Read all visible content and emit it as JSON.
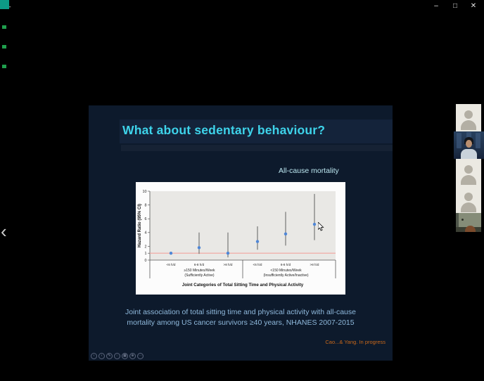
{
  "colors": {
    "slide_bg": "#0d1a2c",
    "slide_band": "#14233a",
    "title_cyan": "#3ed3ea",
    "heading_cyan": "#bce7f0",
    "caption_blue": "#8fb9dc",
    "citation_orange": "#c9681a",
    "panel_white": "#fcfcfc",
    "plot_gray": "#e9e8e5",
    "point_blue": "#4f86d6",
    "ref_line_red": "#f2a49e",
    "teal_marker": "#0d9b87",
    "green_marker": "#1f9e4d",
    "avatar_bg": "#ebe9e2",
    "avatar_fg": "#b3afa4"
  },
  "window": {
    "back_icon": "←",
    "minimize": "–",
    "maximize": "□",
    "close": "✕"
  },
  "nav": {
    "prev_chevron": "‹"
  },
  "slide": {
    "title": "What about sedentary behaviour?",
    "chart_heading": "All-cause mortality",
    "caption": {
      "line1": "Joint association of total sitting time and physical activity with all-cause",
      "line2": "mortality among US cancer survivors ≥40 years, NHANES 2007-2015"
    },
    "citation": "Cao...& Yang. In progress",
    "toolbar": {
      "icons": [
        "‹",
        "›",
        "✎",
        "◌",
        "▦",
        "⊕",
        "⋯"
      ]
    }
  },
  "participants": {
    "count": 5,
    "tiles": [
      {
        "type": "avatar-placeholder"
      },
      {
        "type": "video-feed-person"
      },
      {
        "type": "avatar-placeholder"
      },
      {
        "type": "avatar-placeholder"
      },
      {
        "type": "video-feed-room"
      }
    ]
  },
  "chart_data": {
    "type": "scatter",
    "subtype": "forest-plot-with-error-bars",
    "title": "All-cause mortality",
    "ylabel": "Hazard Ratio (95% CI)",
    "xlabel": "Joint Categories of Total Sitting Time and Physical Activity",
    "ylim": [
      0,
      10
    ],
    "yticks": [
      0,
      1,
      2,
      4,
      6,
      8,
      10
    ],
    "reference_line_y": 1,
    "grid": false,
    "legend": "none",
    "categories": [
      "<6 h/d",
      "6-8 h/d",
      ">8 h/d",
      "<6 h/d",
      "6-8 h/d",
      ">8 h/d"
    ],
    "groups": [
      {
        "label": "≥150 Minutes/Week",
        "sublabel": "(Sufficiently Active)",
        "categories_span": [
          0,
          2
        ]
      },
      {
        "label": "<150 Minutes/Week",
        "sublabel": "(Insufficiently Active/Inactive)",
        "categories_span": [
          3,
          5
        ]
      }
    ],
    "series": [
      {
        "name": "Hazard Ratio (95% CI)",
        "values": [
          1.0,
          1.8,
          1.0,
          2.7,
          3.8,
          5.2
        ],
        "ci_low": [
          1.0,
          0.9,
          0.4,
          1.5,
          2.1,
          2.9
        ],
        "ci_high": [
          1.0,
          4.0,
          4.0,
          4.9,
          7.0,
          9.6
        ]
      }
    ]
  }
}
